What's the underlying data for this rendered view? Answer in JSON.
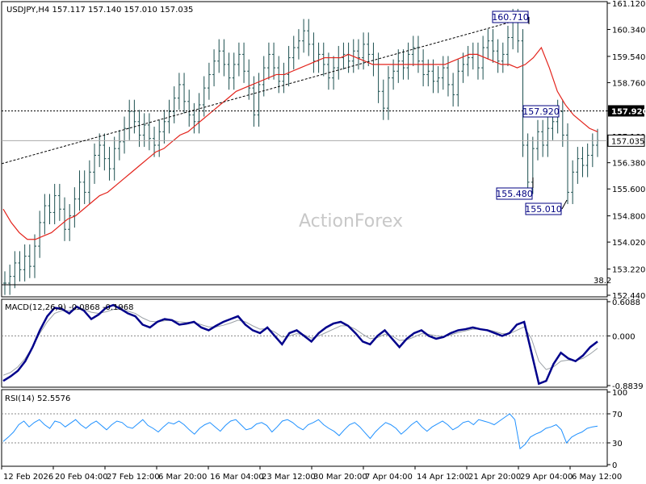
{
  "header": {
    "symbol_text": "USDJPY,H4  157.117 157.140 157.010 157.035"
  },
  "watermark": "ActionForex",
  "chart_data": {
    "type": "candlestick",
    "title": "USDJPY,H4",
    "ohlc_last": {
      "open": 157.117,
      "high": 157.14,
      "low": 157.01,
      "close": 157.035
    },
    "price_axis": {
      "ylim": [
        152.44,
        161.12
      ],
      "ticks": [
        "161.120",
        "160.340",
        "159.540",
        "158.760",
        "157.920",
        "157.160",
        "156.380",
        "155.600",
        "154.800",
        "154.020",
        "153.220",
        "152.440"
      ],
      "current_price_label": "157.035",
      "level_label": "157.920"
    },
    "x_ticks": [
      "12 Feb 2026",
      "20 Feb 04:00",
      "27 Feb 12:00",
      "6 Mar 20:00",
      "16 Mar 04:00",
      "23 Mar 12:00",
      "30 Mar 20:00",
      "7 Apr 04:00",
      "14 Apr 12:00",
      "21 Apr 20:00",
      "29 Apr 04:00",
      "6 May 12:00"
    ],
    "close_series": [
      152.8,
      153.0,
      153.4,
      153.2,
      153.6,
      153.3,
      153.9,
      154.6,
      155.1,
      154.9,
      155.4,
      155.0,
      154.4,
      154.8,
      155.3,
      155.8,
      155.5,
      156.1,
      156.6,
      156.9,
      156.5,
      156.2,
      156.8,
      157.0,
      157.4,
      157.9,
      157.6,
      157.2,
      157.5,
      157.1,
      156.9,
      157.3,
      157.6,
      157.9,
      158.3,
      158.7,
      158.2,
      157.8,
      157.6,
      158.1,
      158.6,
      159.0,
      159.4,
      159.7,
      159.3,
      158.9,
      159.3,
      159.6,
      159.1,
      158.6,
      157.8,
      158.7,
      159.2,
      159.6,
      159.2,
      158.8,
      159.0,
      159.5,
      159.8,
      160.0,
      160.3,
      159.9,
      159.4,
      159.6,
      159.3,
      158.9,
      159.2,
      159.5,
      159.6,
      159.4,
      159.7,
      159.5,
      159.9,
      159.6,
      159.3,
      158.5,
      158.0,
      158.9,
      159.1,
      159.4,
      159.2,
      159.6,
      159.8,
      159.4,
      159.0,
      159.1,
      158.8,
      158.9,
      159.2,
      158.7,
      158.4,
      159.1,
      159.3,
      159.5,
      159.6,
      159.2,
      159.8,
      160.0,
      159.7,
      159.4,
      159.6,
      160.1,
      160.6,
      160.0,
      156.9,
      155.8,
      156.8,
      157.3,
      156.9,
      157.4,
      157.6,
      157.9,
      157.2,
      155.5,
      156.1,
      156.5,
      156.3,
      156.6,
      156.9,
      157.035
    ],
    "ma_series": [
      155.0,
      154.6,
      154.3,
      154.1,
      154.1,
      154.2,
      154.3,
      154.5,
      154.7,
      154.8,
      155.0,
      155.2,
      155.4,
      155.5,
      155.7,
      155.9,
      156.1,
      156.3,
      156.5,
      156.7,
      156.8,
      157.0,
      157.2,
      157.3,
      157.5,
      157.7,
      157.9,
      158.1,
      158.3,
      158.5,
      158.6,
      158.7,
      158.8,
      158.9,
      159.0,
      159.0,
      159.1,
      159.2,
      159.3,
      159.4,
      159.5,
      159.5,
      159.5,
      159.6,
      159.5,
      159.4,
      159.3,
      159.3,
      159.3,
      159.3,
      159.3,
      159.3,
      159.3,
      159.3,
      159.3,
      159.3,
      159.4,
      159.5,
      159.6,
      159.6,
      159.5,
      159.4,
      159.3,
      159.3,
      159.2,
      159.3,
      159.5,
      159.8,
      159.2,
      158.5,
      158.1,
      157.8,
      157.6,
      157.4,
      157.3
    ],
    "trendline": {
      "from": 156.35,
      "to": 160.71
    },
    "annotations": [
      "160.710",
      "157.920",
      "155.480",
      "155.010",
      "38.2"
    ],
    "macd": {
      "label": "MACD(12,26,9) -0.0868 -0.1968",
      "ticks": [
        "0.6088",
        "0.000",
        "-0.8839"
      ],
      "values": [
        -0.8,
        -0.72,
        -0.62,
        -0.45,
        -0.2,
        0.1,
        0.35,
        0.5,
        0.48,
        0.4,
        0.52,
        0.45,
        0.3,
        0.38,
        0.5,
        0.55,
        0.48,
        0.4,
        0.35,
        0.2,
        0.15,
        0.25,
        0.3,
        0.28,
        0.2,
        0.22,
        0.25,
        0.15,
        0.1,
        0.18,
        0.25,
        0.3,
        0.35,
        0.2,
        0.1,
        0.05,
        0.15,
        0.0,
        -0.15,
        0.05,
        0.1,
        0.0,
        -0.1,
        0.05,
        0.15,
        0.22,
        0.25,
        0.18,
        0.05,
        -0.1,
        -0.15,
        0.0,
        0.1,
        -0.05,
        -0.2,
        -0.05,
        0.05,
        0.1,
        0.0,
        -0.05,
        -0.02,
        0.05,
        0.1,
        0.12,
        0.15,
        0.12,
        0.1,
        0.05,
        0.0,
        0.05,
        0.2,
        0.25,
        -0.3,
        -0.85,
        -0.8,
        -0.5,
        -0.3,
        -0.4,
        -0.45,
        -0.35,
        -0.2,
        -0.1
      ],
      "signal": [
        -0.7,
        -0.65,
        -0.55,
        -0.4,
        -0.2,
        0.05,
        0.25,
        0.4,
        0.45,
        0.45,
        0.47,
        0.47,
        0.42,
        0.4,
        0.43,
        0.47,
        0.47,
        0.44,
        0.4,
        0.32,
        0.26,
        0.25,
        0.27,
        0.28,
        0.25,
        0.24,
        0.24,
        0.2,
        0.16,
        0.16,
        0.19,
        0.23,
        0.28,
        0.25,
        0.18,
        0.12,
        0.13,
        0.07,
        -0.02,
        0.0,
        0.04,
        0.02,
        -0.04,
        0.0,
        0.06,
        0.12,
        0.18,
        0.18,
        0.12,
        0.03,
        -0.05,
        -0.03,
        0.03,
        0.0,
        -0.08,
        -0.07,
        -0.02,
        0.04,
        0.03,
        0.0,
        -0.01,
        0.02,
        0.06,
        0.09,
        0.12,
        0.12,
        0.11,
        0.08,
        0.04,
        0.04,
        0.1,
        0.16,
        -0.05,
        -0.45,
        -0.6,
        -0.55,
        -0.45,
        -0.43,
        -0.44,
        -0.4,
        -0.32,
        -0.22
      ]
    },
    "rsi": {
      "label": "RSI(14) 52.5576",
      "ticks": [
        "100",
        "70",
        "30",
        "0"
      ],
      "values": [
        32,
        38,
        45,
        55,
        60,
        52,
        58,
        62,
        55,
        50,
        60,
        58,
        52,
        57,
        62,
        55,
        50,
        56,
        60,
        54,
        48,
        55,
        60,
        58,
        52,
        50,
        56,
        62,
        54,
        50,
        45,
        52,
        58,
        56,
        60,
        55,
        48,
        42,
        50,
        55,
        58,
        52,
        46,
        54,
        60,
        62,
        55,
        48,
        50,
        56,
        58,
        54,
        45,
        52,
        60,
        62,
        58,
        52,
        48,
        55,
        58,
        62,
        55,
        50,
        46,
        40,
        48,
        55,
        58,
        52,
        44,
        36,
        45,
        52,
        58,
        55,
        50,
        42,
        48,
        55,
        60,
        52,
        46,
        52,
        56,
        60,
        55,
        48,
        52,
        58,
        60,
        55,
        62,
        60,
        58,
        55,
        60,
        65,
        70,
        62,
        22,
        28,
        38,
        42,
        45,
        50,
        52,
        55,
        48,
        30,
        38,
        42,
        45,
        50,
        52,
        53
      ]
    }
  }
}
